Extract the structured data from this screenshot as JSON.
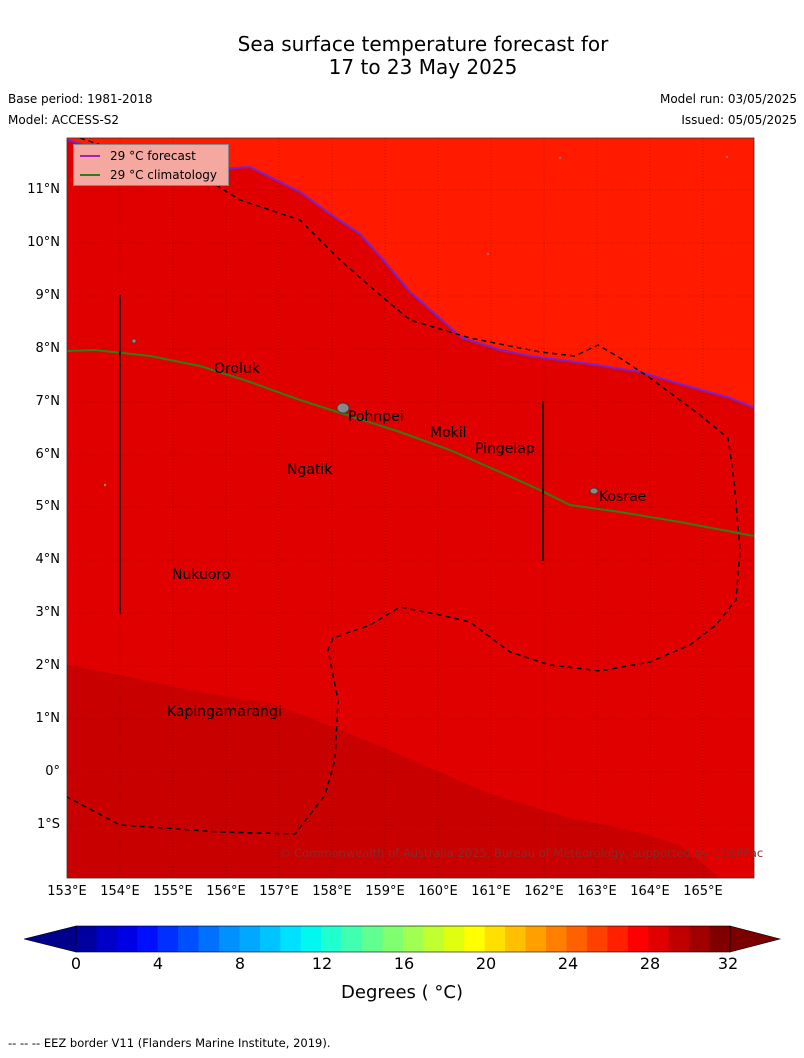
{
  "title": {
    "line1": "Sea surface temperature forecast for",
    "line2": "17 to 23 May 2025"
  },
  "meta": {
    "base_period": "Base period: 1981-2018",
    "model": "Model: ACCESS-S2",
    "model_run": "Model run: 03/05/2025",
    "issued": "Issued: 05/05/2025"
  },
  "legend": {
    "forecast": {
      "label": "29 °C  forecast",
      "color": "#a020c0"
    },
    "climatology": {
      "label": "29 °C  climatology",
      "color": "#2e7d1a"
    }
  },
  "map": {
    "lon_range": [
      153,
      166
    ],
    "lat_range": [
      -2,
      12
    ],
    "lon_ticks": [
      "153°E",
      "154°E",
      "155°E",
      "156°E",
      "157°E",
      "158°E",
      "159°E",
      "160°E",
      "161°E",
      "162°E",
      "163°E",
      "164°E",
      "165°E"
    ],
    "lat_ticks": [
      "11°N",
      "10°N",
      "9°N",
      "8°N",
      "7°N",
      "6°N",
      "5°N",
      "4°N",
      "3°N",
      "2°N",
      "1°N",
      "0°",
      "1°S"
    ],
    "colors": {
      "warm_30": "#ff1a00",
      "warm_31": "#e00000",
      "warm_32": "#c80000"
    },
    "places": [
      "Oroluk",
      "Pohnpei",
      "Mokil",
      "Pingelap",
      "Ngatik",
      "Kosrae",
      "Nukuoro",
      "Kapingamarangi"
    ],
    "credit": "© Commonwealth of Australia 2025, Bureau of Meteorology, supported by COSPPac"
  },
  "colorbar": {
    "ticks": [
      "0",
      "4",
      "8",
      "12",
      "16",
      "20",
      "24",
      "28",
      "32"
    ],
    "label": "Degrees ( °C)",
    "colors": [
      "#0000a0",
      "#0000c8",
      "#0000e6",
      "#0010ff",
      "#0030ff",
      "#0050ff",
      "#0070ff",
      "#0090ff",
      "#00a8ff",
      "#00c4ff",
      "#00e0ff",
      "#00f8f0",
      "#20ffd0",
      "#40ffb0",
      "#60ff90",
      "#80ff70",
      "#a0ff50",
      "#c0ff30",
      "#e0ff10",
      "#ffff00",
      "#ffe000",
      "#ffc000",
      "#ffa000",
      "#ff8000",
      "#ff6000",
      "#ff4000",
      "#ff2000",
      "#ff0000",
      "#e00000",
      "#c00000",
      "#a00000",
      "#800000"
    ]
  },
  "footer": "--  --  -- EEZ border V11 (Flanders Marine Institute, 2019)."
}
